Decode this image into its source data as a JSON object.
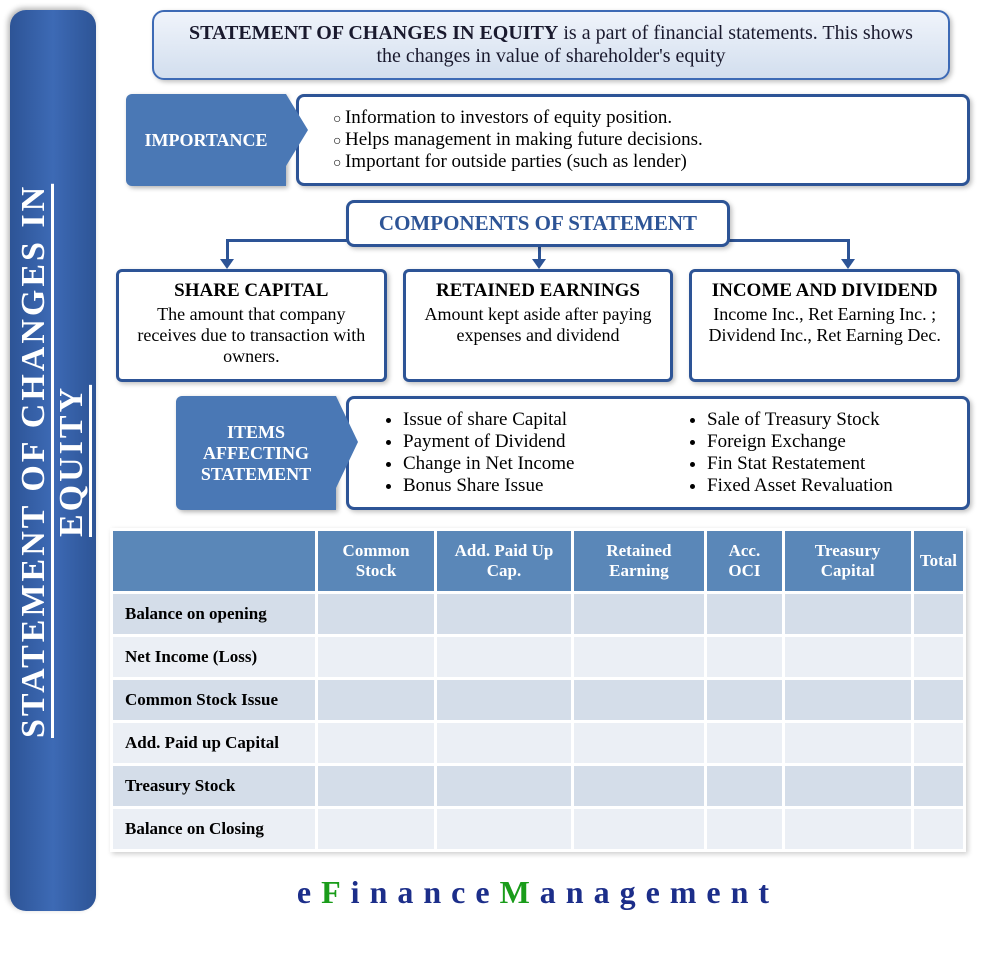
{
  "colors": {
    "primary": "#2d5496",
    "tag_bg": "#4a78b5",
    "table_header": "#5a87b8",
    "row_odd": "#d4dde9",
    "row_even": "#ebeff5",
    "footer_blue": "#1c2e8a",
    "footer_green": "#1a9c1a",
    "header_grad_top": "#f0f4fb",
    "header_grad_bottom": "#d2deee"
  },
  "typography": {
    "body_font": "Garamond, Georgia, serif",
    "side_title_fontsize": 34,
    "header_fontsize": 20,
    "section_label_fontsize": 18,
    "content_fontsize": 19,
    "comp_title_fontsize": 19,
    "comp_desc_fontsize": 18,
    "table_header_fontsize": 17,
    "table_cell_fontsize": 17,
    "footer_fontsize": 32
  },
  "side_title_top": "STATEMENT OF CHANGES IN",
  "side_title_bottom": "EQUITY",
  "header_bold": "STATEMENT OF CHANGES IN EQUITY",
  "header_rest": " is a part of financial statements. This shows the changes in value of shareholder's equity",
  "importance": {
    "label": "IMPORTANCE",
    "items": [
      "Information to investors of equity position.",
      "Helps management in making future decisions.",
      "Important for outside parties (such as lender)"
    ]
  },
  "components_heading": "COMPONENTS OF STATEMENT",
  "components": [
    {
      "title": "SHARE CAPITAL",
      "desc": "The amount that company receives due to transaction with owners."
    },
    {
      "title": "RETAINED EARNINGS",
      "desc": "Amount kept aside after paying expenses and dividend"
    },
    {
      "title": "INCOME AND DIVIDEND",
      "desc": "Income Inc., Ret Earning Inc. ; Dividend Inc., Ret Earning Dec."
    }
  ],
  "items_affecting": {
    "label_line1": "ITEMS",
    "label_line2": "AFFECTING",
    "label_line3": "STATEMENT",
    "col1": [
      "Issue of share Capital",
      "Payment of Dividend",
      "Change in Net Income",
      "Bonus Share Issue"
    ],
    "col2": [
      "Sale of Treasury Stock",
      "Foreign Exchange",
      "Fin Stat Restatement",
      "Fixed Asset Revaluation"
    ]
  },
  "table": {
    "columns": [
      "",
      "Common Stock",
      "Add. Paid Up Cap.",
      "Retained Earning",
      "Acc. OCI",
      "Treasury Capital",
      "Total"
    ],
    "rows": [
      "Balance on opening",
      "Net Income (Loss)",
      "Common Stock Issue",
      "Add. Paid up Capital",
      "Treasury Stock",
      "Balance on Closing"
    ]
  },
  "footer": {
    "e": "e",
    "F": "F",
    "inance": "inance",
    "M": "M",
    "anagement": "anagement"
  }
}
